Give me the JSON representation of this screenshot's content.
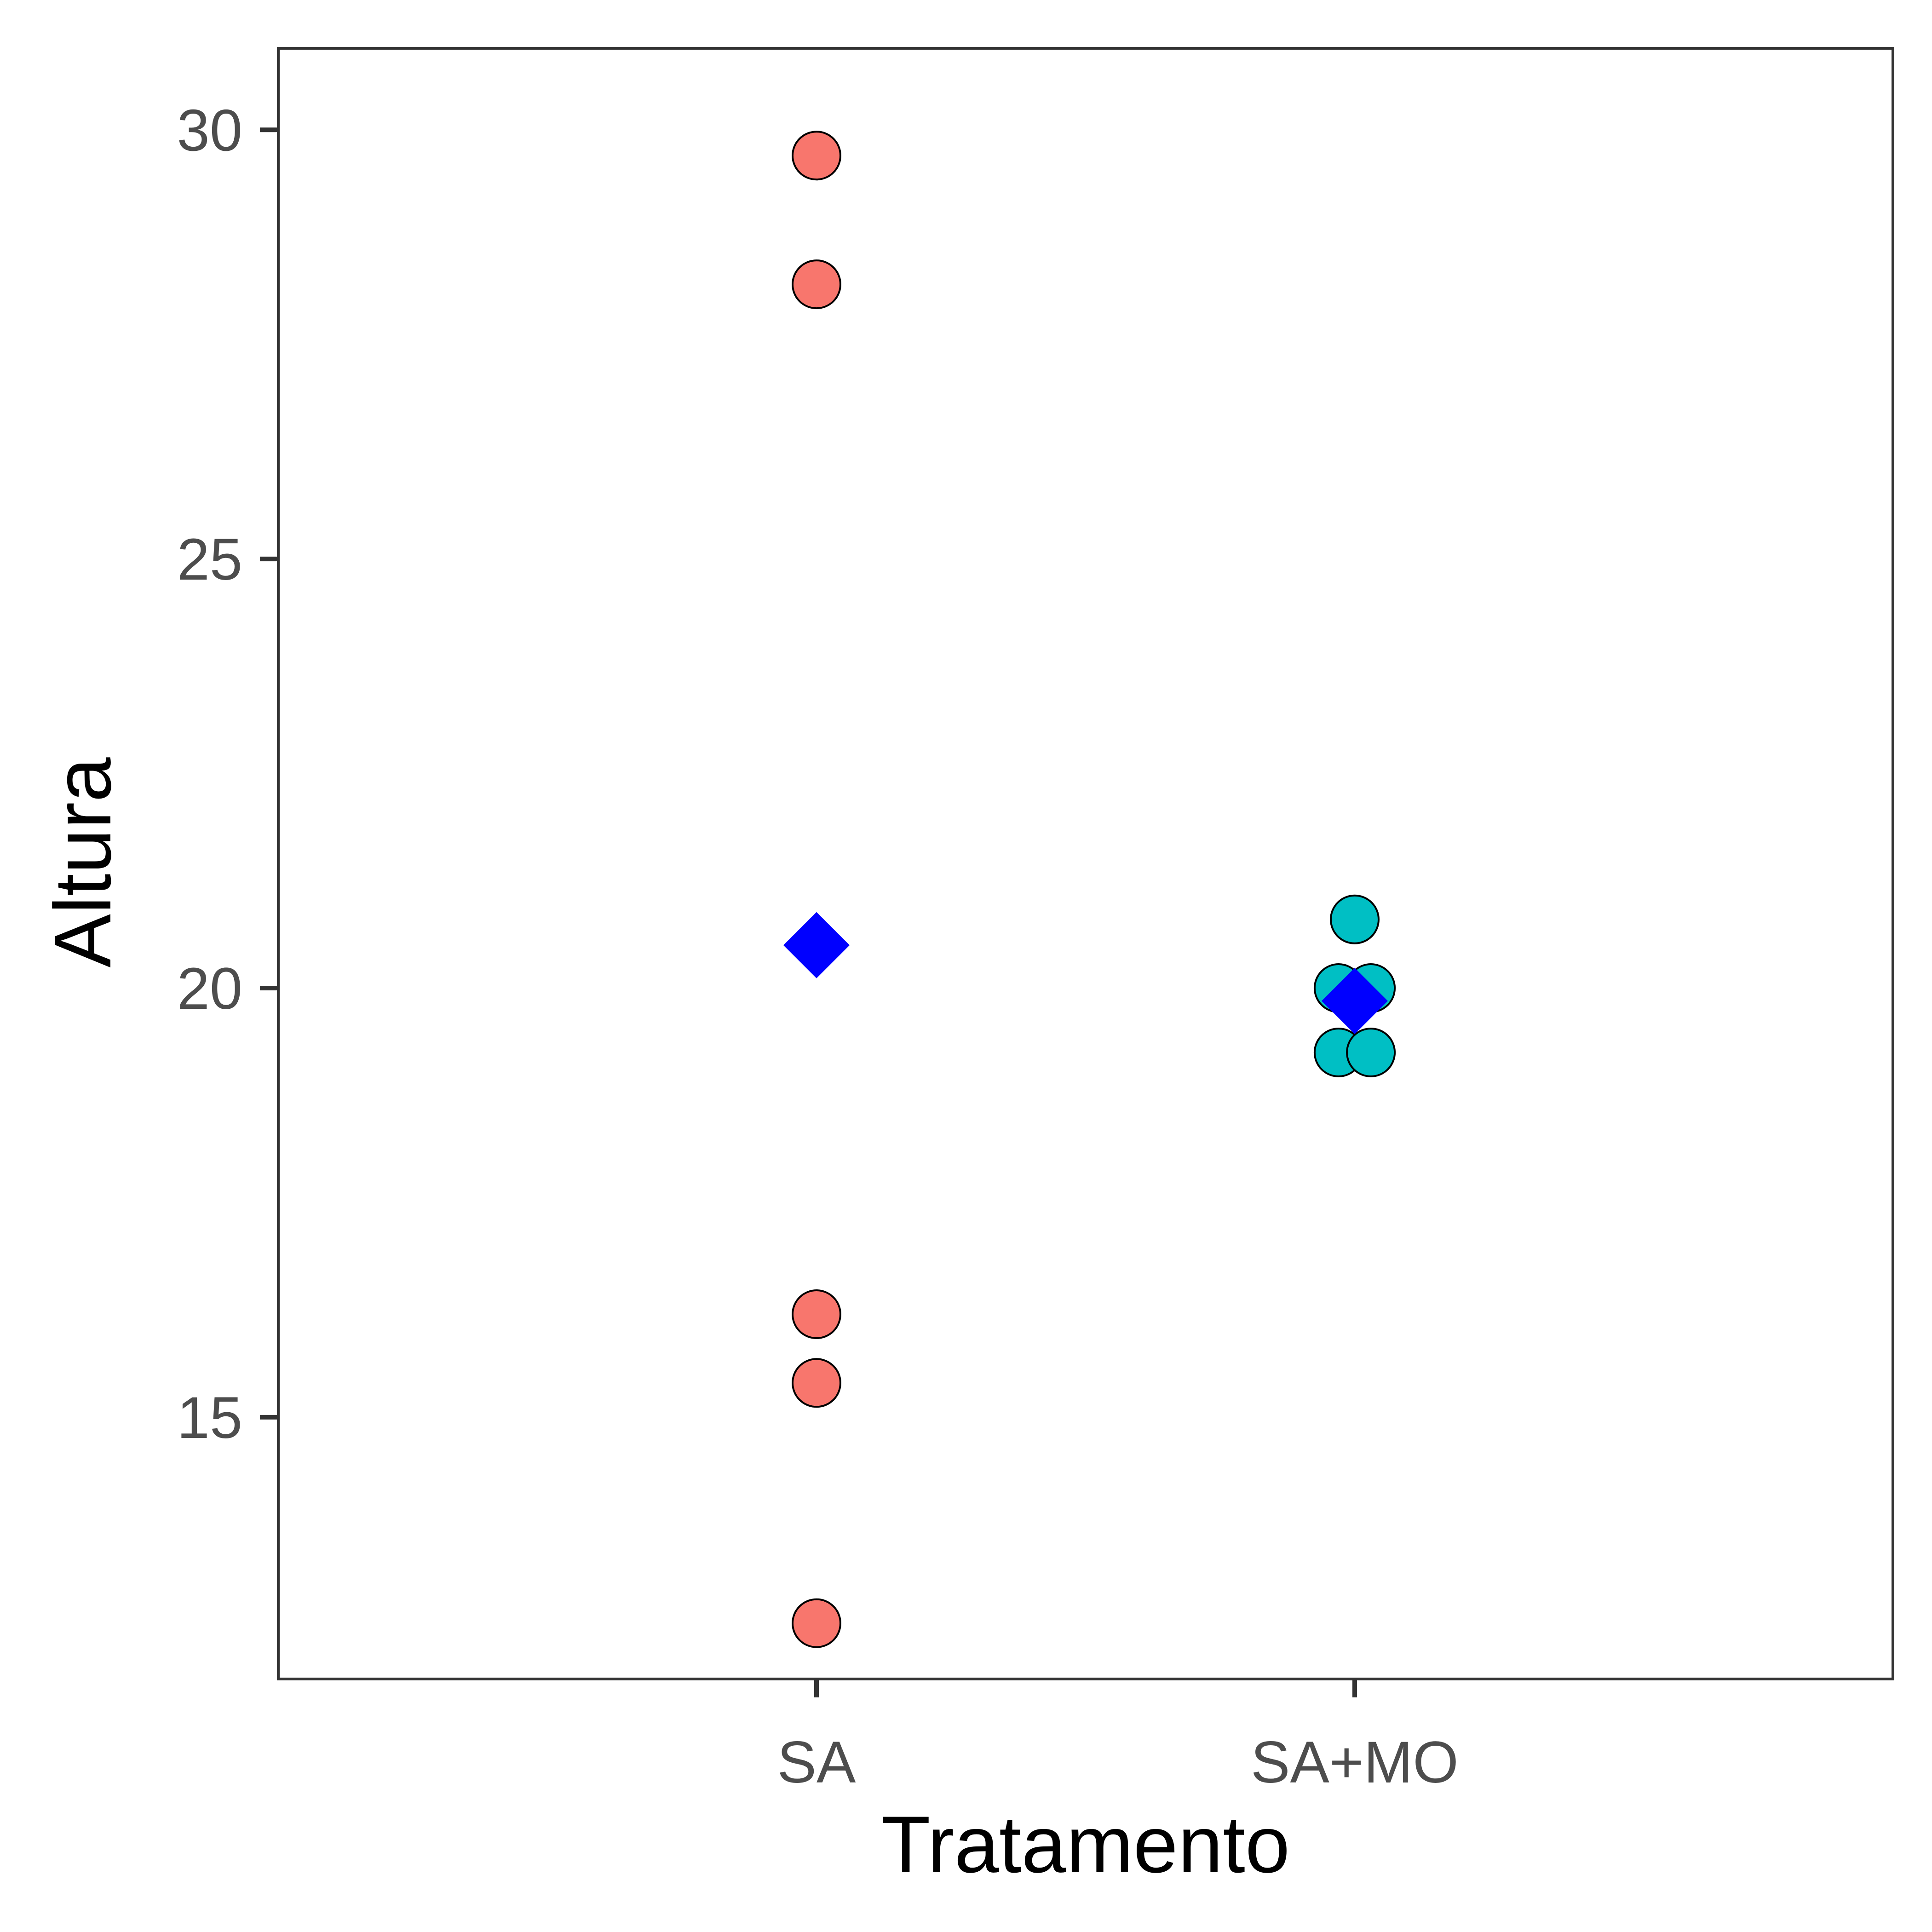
{
  "chart_data": {
    "type": "scatter",
    "title": "",
    "xlabel": "Tratamento",
    "ylabel": "Altura",
    "categories": [
      "SA",
      "SA+MO"
    ],
    "yticks": [
      15,
      20,
      25,
      30
    ],
    "ylim": [
      11.95,
      30.95
    ],
    "grid": false,
    "legend": "none",
    "series": [
      {
        "category": "SA",
        "color": "#F8766D",
        "points": [
          {
            "x": "SA",
            "y": 29.7,
            "dx": 0
          },
          {
            "x": "SA",
            "y": 28.2,
            "dx": 0
          },
          {
            "x": "SA",
            "y": 16.2,
            "dx": 0
          },
          {
            "x": "SA",
            "y": 15.4,
            "dx": 0
          },
          {
            "x": "SA",
            "y": 12.6,
            "dx": 0
          }
        ],
        "mean": 20.5
      },
      {
        "category": "SA+MO",
        "color": "#00BFC4",
        "points": [
          {
            "x": "SA+MO",
            "y": 20.8,
            "dx": 0
          },
          {
            "x": "SA+MO",
            "y": 20.0,
            "dx": -0.03
          },
          {
            "x": "SA+MO",
            "y": 20.0,
            "dx": 0.03
          },
          {
            "x": "SA+MO",
            "y": 19.25,
            "dx": -0.03
          },
          {
            "x": "SA+MO",
            "y": 19.25,
            "dx": 0.03
          }
        ],
        "mean": 19.85
      }
    ],
    "mean_marker": {
      "shape": "diamond",
      "color": "#0000FF"
    }
  }
}
